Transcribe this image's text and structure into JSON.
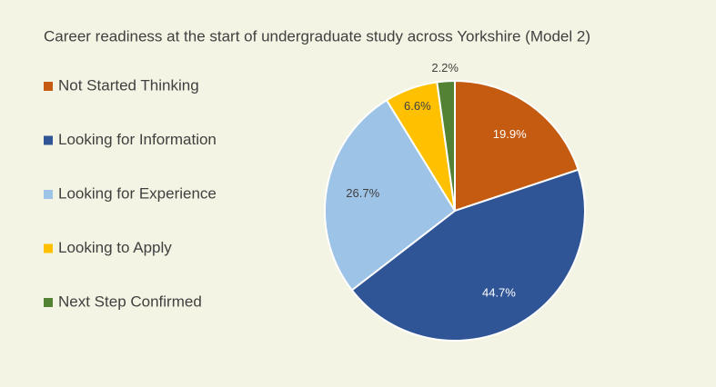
{
  "chart_data": {
    "type": "pie",
    "title": "Career readiness at the start of undergraduate study across Yorkshire (Model 2)",
    "categories": [
      "Not Started Thinking",
      "Looking for Information",
      "Looking for Experience",
      "Looking to Apply",
      "Next Step Confirmed"
    ],
    "values": [
      19.9,
      44.7,
      26.7,
      6.6,
      2.2
    ],
    "value_labels": [
      "19.9%",
      "44.7%",
      "26.7%",
      "6.6%",
      "2.2%"
    ],
    "colors": [
      "#c55a11",
      "#2f5597",
      "#9dc3e6",
      "#ffc000",
      "#548235"
    ],
    "legend": "left"
  }
}
